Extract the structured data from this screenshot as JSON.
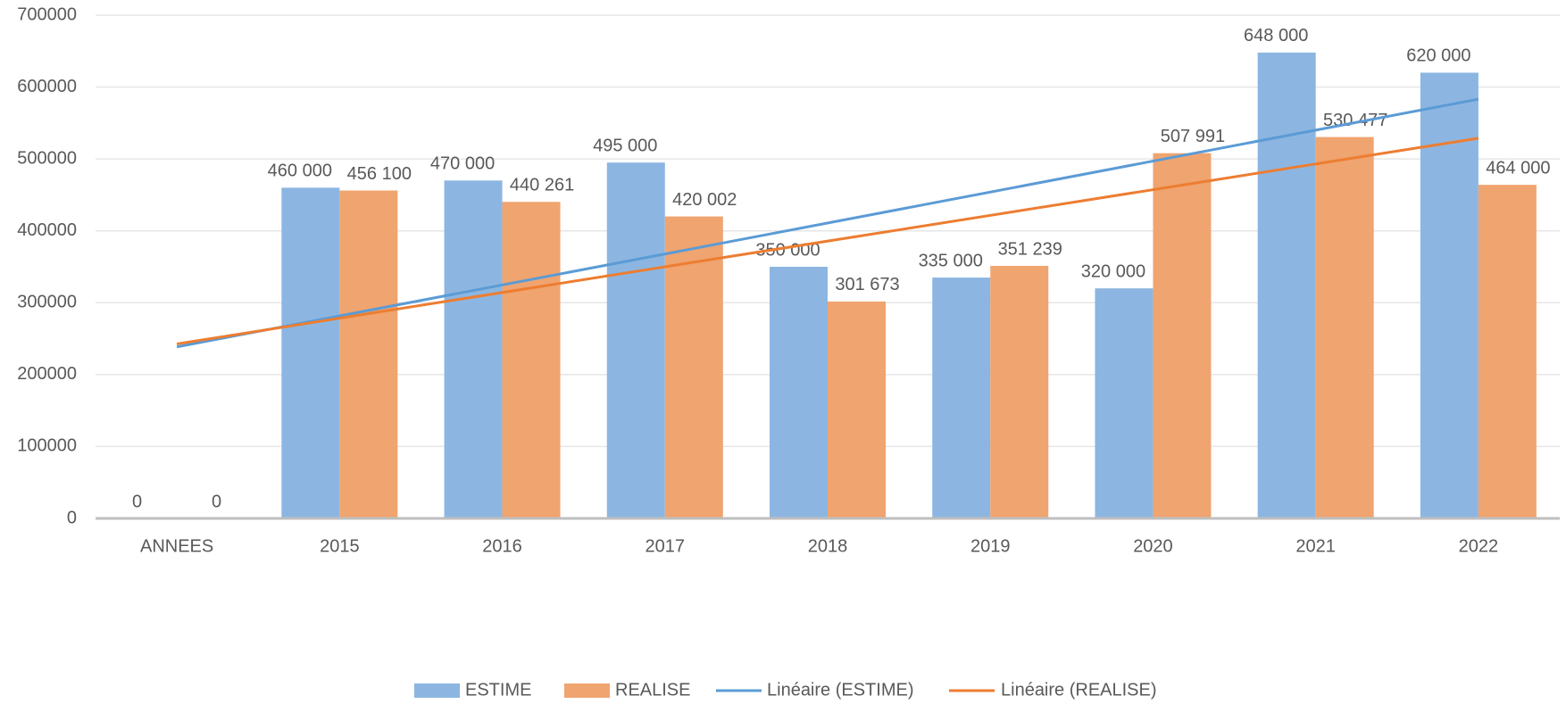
{
  "chart_data": {
    "type": "bar",
    "categories": [
      "ANNEES",
      "2015",
      "2016",
      "2017",
      "2018",
      "2019",
      "2020",
      "2021",
      "2022"
    ],
    "series": [
      {
        "name": "ESTIME",
        "color": "#8cb6e1",
        "values": [
          0,
          460000,
          470000,
          495000,
          350000,
          335000,
          320000,
          648000,
          620000
        ],
        "value_labels": [
          "0",
          "460 000",
          "470 000",
          "495 000",
          "350 000",
          "335 000",
          "320 000",
          "648 000",
          "620 000"
        ]
      },
      {
        "name": "REALISE",
        "color": "#f0a46f",
        "values": [
          0,
          456100,
          440261,
          420002,
          301673,
          351239,
          507991,
          530477,
          464000
        ],
        "value_labels": [
          "0",
          "456 100",
          "440 261",
          "420 002",
          "301 673",
          "351 239",
          "507 991",
          "530 477",
          "464 000"
        ]
      }
    ],
    "trendlines": [
      {
        "name": "Linéaire (ESTIME)",
        "color": "#5b9bd5",
        "values": [
          238600,
          583200
        ]
      },
      {
        "name": "Linéaire (REALISE)",
        "color": "#ed7d31",
        "values": [
          242700,
          528800
        ]
      }
    ],
    "ylim": [
      0,
      700000
    ],
    "yticks": [
      0,
      100000,
      200000,
      300000,
      400000,
      500000,
      600000,
      700000
    ],
    "grid": true,
    "legend": "bottom"
  }
}
